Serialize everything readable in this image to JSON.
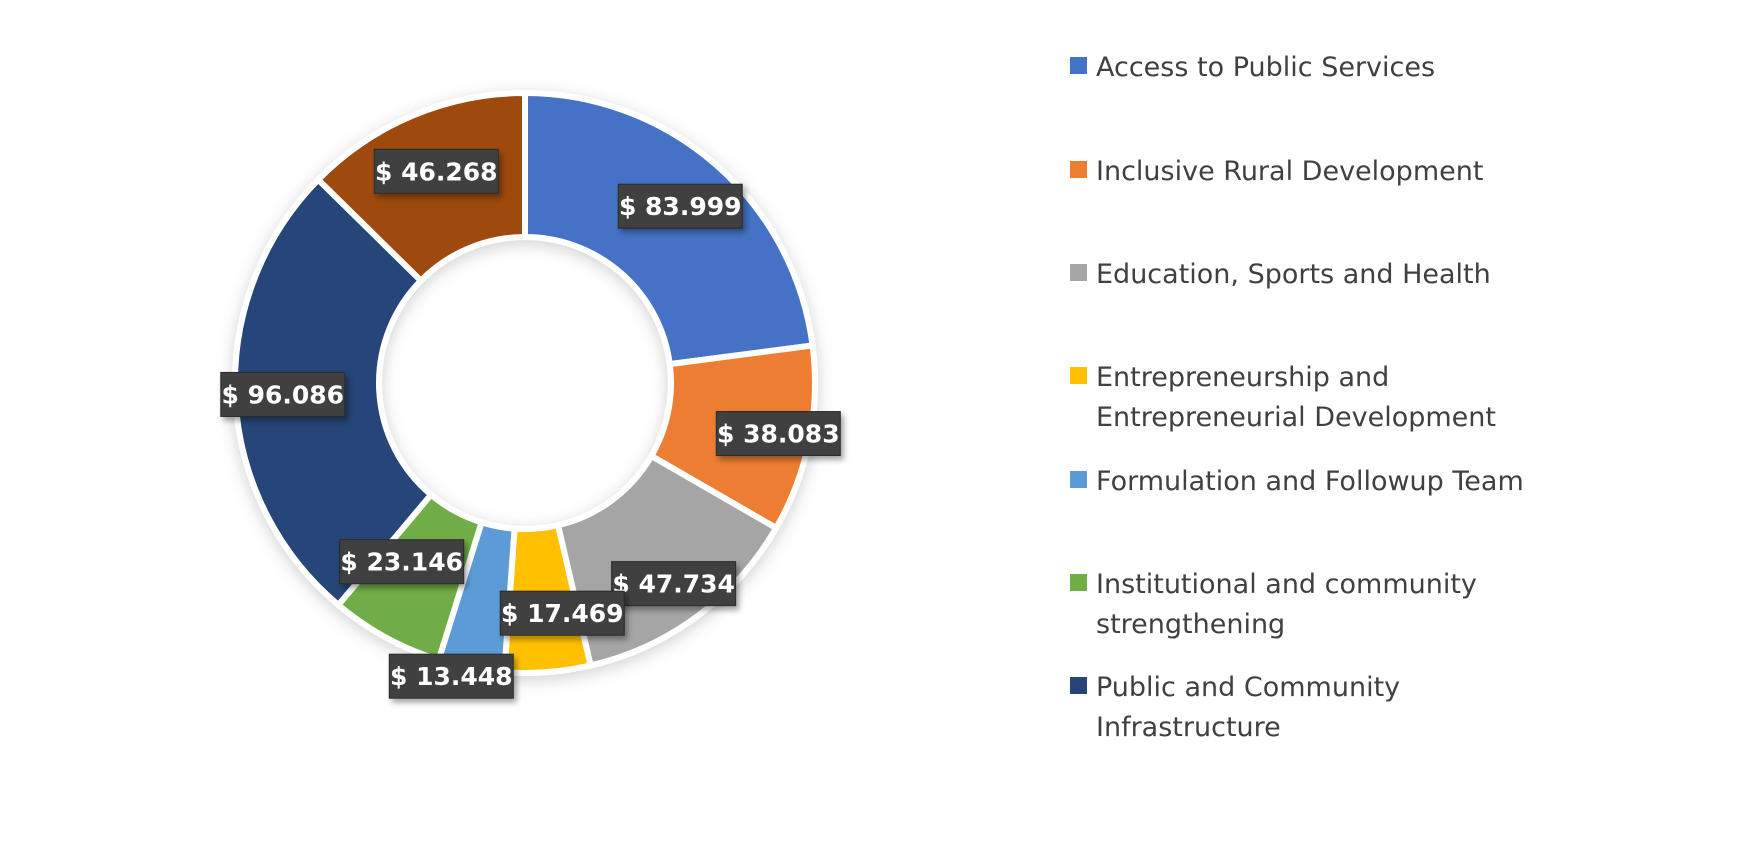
{
  "chart_data": {
    "type": "pie",
    "style": "doughnut",
    "title": "",
    "legend_position": "right",
    "series": [
      {
        "name": "Access to Public Services",
        "value": 83.999,
        "label": "$ 83.999",
        "color": "#4472C4"
      },
      {
        "name": "Inclusive Rural Development",
        "value": 38.083,
        "label": "$ 38.083",
        "color": "#ED7D31"
      },
      {
        "name": "Education, Sports and Health",
        "value": 47.734,
        "label": "$ 47.734",
        "color": "#A5A5A5"
      },
      {
        "name": "Entrepreneurship and Entrepreneurial Development",
        "value": 17.469,
        "label": "$ 17.469",
        "color": "#FFC000"
      },
      {
        "name": "Formulation and Followup Team",
        "value": 13.448,
        "label": "$ 13.448",
        "color": "#5B9BD5"
      },
      {
        "name": "Institutional and community strengthening",
        "value": 23.146,
        "label": "$ 23.146",
        "color": "#70AD47"
      },
      {
        "name": "Public and Community Infrastructure",
        "value": 96.086,
        "label": "$ 96.086",
        "color": "#264478"
      },
      {
        "name": "",
        "value": 46.268,
        "label": "$ 46.268",
        "color": "#9E480E"
      }
    ]
  }
}
